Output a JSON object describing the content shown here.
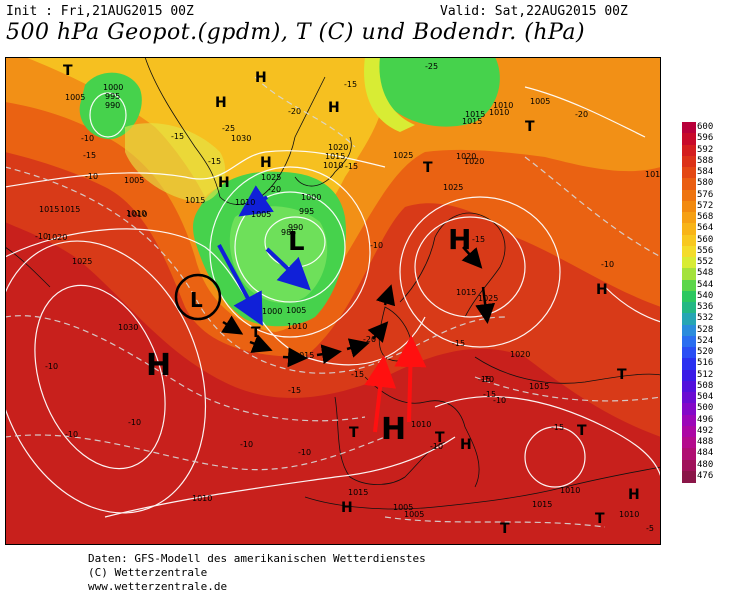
{
  "header": {
    "init": "Init : Fri,21AUG2015 00Z",
    "valid": "Valid: Sat,22AUG2015 00Z",
    "title": "500 hPa Geopot.(gpdm), T (C) und Bodendr. (hPa)"
  },
  "footer": {
    "line1": "Daten: GFS-Modell des amerikanischen Wetterdienstes",
    "line2": "(C) Wetterzentrale",
    "line3": "www.wetterzentrale.de"
  },
  "scale": {
    "values": [
      "600",
      "596",
      "592",
      "588",
      "584",
      "580",
      "576",
      "572",
      "568",
      "564",
      "560",
      "556",
      "552",
      "548",
      "544",
      "540",
      "536",
      "532",
      "528",
      "524",
      "520",
      "516",
      "512",
      "508",
      "504",
      "500",
      "496",
      "492",
      "488",
      "484",
      "480",
      "476"
    ],
    "colors": [
      "#b8003a",
      "#c80a2a",
      "#d41e1e",
      "#dc3218",
      "#e44814",
      "#ea5e12",
      "#ee7410",
      "#f28a10",
      "#f6a014",
      "#f8b418",
      "#f8c820",
      "#f4dc2a",
      "#d8ec34",
      "#a4e23c",
      "#5cd64a",
      "#2cc860",
      "#24b884",
      "#26a6b4",
      "#2a8cdc",
      "#2a6ef0",
      "#2a4ef4",
      "#2a30f0",
      "#3a1ae6",
      "#5210dc",
      "#6a0cd2",
      "#8408c8",
      "#9c06b8",
      "#ac06a4",
      "#b40a8c",
      "#b00e72",
      "#a0125a",
      "#8a1648"
    ]
  },
  "map": {
    "highs": [
      {
        "label": "H",
        "big": true
      },
      {
        "label": "H",
        "big": true
      },
      {
        "label": "H",
        "big": true
      }
    ],
    "lows": [
      {
        "label": "L",
        "big": true
      },
      {
        "label": "L",
        "big": true
      }
    ],
    "pressure_labels": [
      "1005",
      "1000",
      "995",
      "990",
      "1030",
      "1025",
      "1020",
      "1015",
      "1010",
      "1005",
      "1000",
      "995",
      "990",
      "985",
      "1015",
      "1010",
      "1005",
      "1000",
      "1005",
      "1010",
      "1025",
      "1020",
      "1015",
      "1010",
      "1025",
      "1015",
      "1025",
      "1020",
      "1015",
      "1010",
      "1005",
      "1030",
      "1015",
      "1025",
      "1020",
      "1015",
      "1010",
      "1005",
      "1010",
      "1015",
      "1005",
      "1010",
      "1015",
      "1010",
      "1020",
      "1015",
      "1010",
      "1015",
      "1010",
      "1010"
    ],
    "temp_labels": [
      "-10",
      "-15",
      "-20",
      "-25",
      "-15",
      "-10",
      "-15",
      "-20",
      "-25",
      "-20",
      "-15",
      "-10",
      "-15",
      "-10",
      "-15",
      "-10",
      "-10",
      "-15",
      "-10",
      "-15",
      "-10",
      "-10",
      "-10",
      "-15",
      "-20",
      "-15",
      "-10",
      "-15",
      "-10",
      "-15",
      "-10",
      "-5"
    ],
    "small_markers": [
      "T",
      "T",
      "T",
      "T",
      "T",
      "T",
      "T",
      "T",
      "T",
      "T",
      "H",
      "H",
      "H",
      "H",
      "H",
      "H",
      "H",
      "H",
      "H"
    ]
  }
}
